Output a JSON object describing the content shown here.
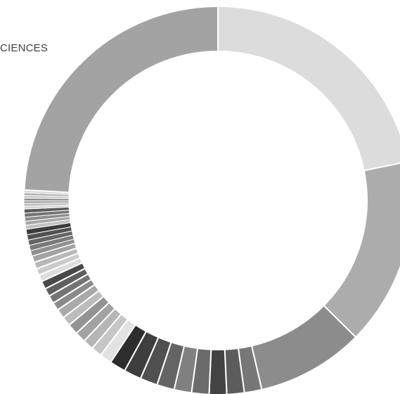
{
  "chart_data": {
    "type": "pie",
    "variant": "donut",
    "title": "CIENCES",
    "legend": "none",
    "slices": [
      {
        "value": 19.5,
        "color": "#dcdcdc"
      },
      {
        "value": 14.0,
        "color": "#acacac"
      },
      {
        "value": 8.0,
        "color": "#8c8c8c"
      },
      {
        "value": 1.3,
        "color": "#777777"
      },
      {
        "value": 1.3,
        "color": "#5c5c5c"
      },
      {
        "value": 1.3,
        "color": "#434343"
      },
      {
        "value": 1.3,
        "color": "#6b6b6b"
      },
      {
        "value": 1.3,
        "color": "#808080"
      },
      {
        "value": 1.3,
        "color": "#646464"
      },
      {
        "value": 1.3,
        "color": "#505050"
      },
      {
        "value": 1.3,
        "color": "#3e3e3e"
      },
      {
        "value": 1.2,
        "color": "#2d2d2d"
      },
      {
        "value": 0.9,
        "color": "#e2e2e2"
      },
      {
        "value": 0.8,
        "color": "#c6c6c6"
      },
      {
        "value": 0.8,
        "color": "#b6b6b6"
      },
      {
        "value": 0.8,
        "color": "#a2a2a2"
      },
      {
        "value": 0.8,
        "color": "#939393"
      },
      {
        "value": 0.7,
        "color": "#bcbcbc"
      },
      {
        "value": 0.7,
        "color": "#aaaaaa"
      },
      {
        "value": 0.6,
        "color": "#8a8a8a"
      },
      {
        "value": 0.6,
        "color": "#747474"
      },
      {
        "value": 0.6,
        "color": "#5f5f5f"
      },
      {
        "value": 0.6,
        "color": "#494949"
      },
      {
        "value": 0.5,
        "color": "#dddddd"
      },
      {
        "value": 0.5,
        "color": "#cbcbcb"
      },
      {
        "value": 0.5,
        "color": "#b8b8b8"
      },
      {
        "value": 0.5,
        "color": "#a3a3a3"
      },
      {
        "value": 0.4,
        "color": "#909090"
      },
      {
        "value": 0.4,
        "color": "#7a7a7a"
      },
      {
        "value": 0.4,
        "color": "#666666"
      },
      {
        "value": 0.4,
        "color": "#515151"
      },
      {
        "value": 0.4,
        "color": "#3c3c3c"
      },
      {
        "value": 0.3,
        "color": "#c2c2c2"
      },
      {
        "value": 0.3,
        "color": "#a8a8a8"
      },
      {
        "value": 0.3,
        "color": "#8e8e8e"
      },
      {
        "value": 0.3,
        "color": "#747474"
      },
      {
        "value": 0.3,
        "color": "#5a5a5a"
      },
      {
        "value": 0.2,
        "color": "#d4d4d4"
      },
      {
        "value": 0.2,
        "color": "#bcbcbc"
      },
      {
        "value": 0.2,
        "color": "#a4a4a4"
      },
      {
        "value": 0.2,
        "color": "#8c8c8c"
      },
      {
        "value": 0.2,
        "color": "#c8c8c8"
      },
      {
        "value": 0.2,
        "color": "#b0b0b0"
      },
      {
        "value": 0.2,
        "color": "#d8d8d8"
      },
      {
        "value": 21.6,
        "color": "#a3a3a3"
      }
    ]
  }
}
